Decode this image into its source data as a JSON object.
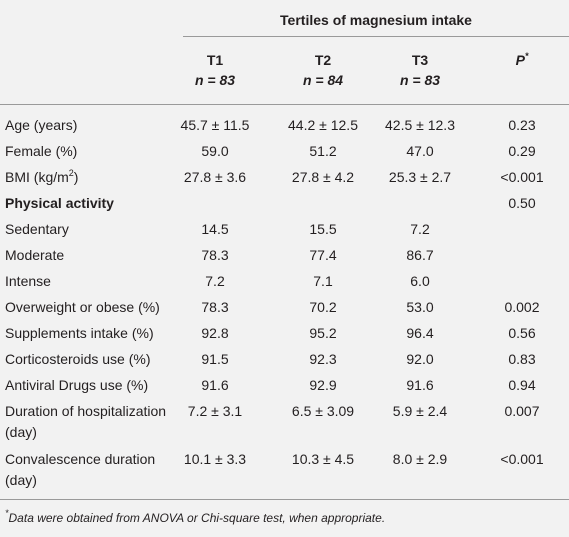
{
  "table": {
    "group_header": "Tertiles of magnesium intake",
    "columns": [
      {
        "name": "T1",
        "n": "n = 83"
      },
      {
        "name": "T2",
        "n": "n = 84"
      },
      {
        "name": "T3",
        "n": "n = 83"
      }
    ],
    "p_header": "P",
    "p_header_sup": "*",
    "rows": [
      {
        "label": "Age (years)",
        "values": [
          "45.7 ± 11.5",
          "44.2 ± 12.5",
          "42.5 ± 12.3"
        ],
        "p": "0.23"
      },
      {
        "label": "Female (%)",
        "values": [
          "59.0",
          "51.2",
          "47.0"
        ],
        "p": "0.29"
      },
      {
        "label": "BMI (kg/m",
        "label_sup": "2",
        "label_end": ")",
        "values": [
          "27.8 ± 3.6",
          "27.8 ± 4.2",
          "25.3 ± 2.7"
        ],
        "p": "<0.001"
      },
      {
        "label": "Physical activity",
        "bold": true,
        "p": "0.50"
      },
      {
        "label": "Sedentary",
        "values": [
          "14.5",
          "15.5",
          "7.2"
        ]
      },
      {
        "label": "Moderate",
        "values": [
          "78.3",
          "77.4",
          "86.7"
        ]
      },
      {
        "label": "Intense",
        "values": [
          "7.2",
          "7.1",
          "6.0"
        ]
      },
      {
        "label": "Overweight or obese (%)",
        "values": [
          "78.3",
          "70.2",
          "53.0"
        ],
        "p": "0.002"
      },
      {
        "label": "Supplements intake (%)",
        "values": [
          "92.8",
          "95.2",
          "96.4"
        ],
        "p": "0.56"
      },
      {
        "label": "Corticosteroids use (%)",
        "values": [
          "91.5",
          "92.3",
          "92.0"
        ],
        "p": "0.83"
      },
      {
        "label": "Antiviral Drugs use (%)",
        "values": [
          "91.6",
          "92.9",
          "91.6"
        ],
        "p": "0.94"
      },
      {
        "label": "Duration of hospitalization (day)",
        "values": [
          "7.2 ± 3.1",
          "6.5 ± 3.09",
          "5.9 ± 2.4"
        ],
        "p": "0.007"
      },
      {
        "label": "Convalescence duration (day)",
        "values": [
          "10.1 ± 3.3",
          "10.3 ± 4.5",
          "8.0 ± 2.9"
        ],
        "p": "<0.001"
      }
    ],
    "footnote_sup": "*",
    "footnote": "Data were obtained from ANOVA or Chi-square test, when appropriate."
  }
}
